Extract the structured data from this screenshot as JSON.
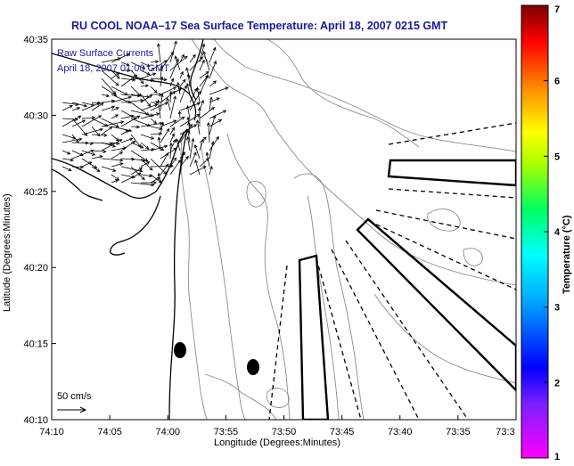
{
  "chart_data": {
    "type": "map",
    "title": "RU COOL  NOAA–17  Sea Surface Temperature:  April 18, 2007 0215 GMT",
    "xlabel": "Longitude (Degrees:Minutes)",
    "ylabel": "Latitude (Degrees:Minutes)",
    "x_ticks": [
      "74:10",
      "74:05",
      "74:00",
      "73:55",
      "73:50",
      "73:45",
      "73:40",
      "73:35",
      "73:3"
    ],
    "y_ticks": [
      "40:35",
      "40:30",
      "40:25",
      "40:20",
      "40:15",
      "40:10"
    ],
    "xlim_minutes_west": [
      10,
      -30
    ],
    "ylim_minutes_north": [
      10,
      35
    ],
    "overlay_label_line1": "Raw Surface Currents",
    "overlay_label_line2": "April 18, 2007 01:00 GMT",
    "scale_label": "50 cm/s",
    "colorbar": {
      "label": "Temperature (°C)",
      "ticks": [
        "1",
        "2",
        "3",
        "4",
        "5",
        "6",
        "7"
      ],
      "range": [
        1,
        7
      ],
      "colors": [
        "#ff00ff",
        "#0000ff",
        "#00ffff",
        "#00ff00",
        "#ffff00",
        "#ff8800",
        "#ff0000",
        "#7a0000"
      ]
    },
    "markers": [
      {
        "lon": "74:01.3",
        "lat": "40:14.6"
      },
      {
        "lon": "73:57.3",
        "lat": "40:13.5"
      }
    ]
  }
}
